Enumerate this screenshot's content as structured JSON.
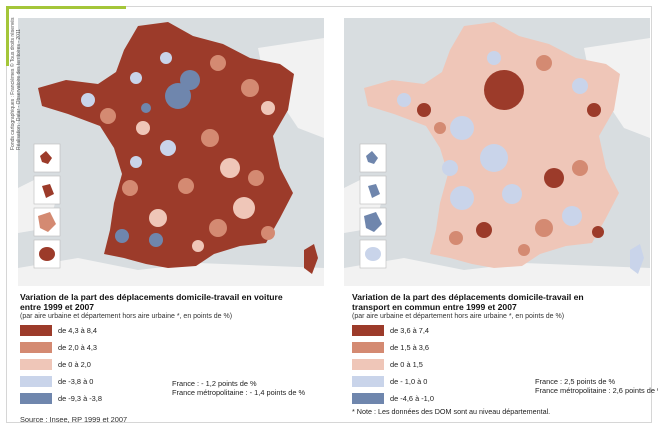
{
  "colors": {
    "c1": "#9c3b2a",
    "c2": "#d48a72",
    "c3": "#efc6b8",
    "c4": "#c9d4ea",
    "c5": "#6f86ad",
    "sea": "#d8dde0",
    "land": "#f2f2f2"
  },
  "credits": {
    "line1": "Fonds cartographiques : Francièmes © Tous droits réservés",
    "line2": "Réalisation : Datar - Observatoire des territoires - 2011"
  },
  "left": {
    "title_line1": "Variation de la part des déplacements domicile-travail en voiture",
    "title_line2": "entre  1999 et 2007",
    "subtitle": "(par aire urbaine et département hors aire urbaine *, en points de %)",
    "legend": [
      {
        "label": "de 4,3 à 8,4",
        "color": "#9c3b2a"
      },
      {
        "label": "de 2,0 à 4,3",
        "color": "#d48a72"
      },
      {
        "label": "de 0 à 2,0",
        "color": "#efc6b8"
      },
      {
        "label": "de -3,8 à 0",
        "color": "#c9d4ea"
      },
      {
        "label": "de -9,3 à -3,8",
        "color": "#6f86ad"
      }
    ],
    "stat_france": "France : - 1,2 points de %",
    "stat_metro": "France métropolitaine : - 1,4 points de %"
  },
  "right": {
    "title_line1": "Variation de la part des déplacements domicile-travail en",
    "title_line2": "transport en commun entre 1999 et 2007",
    "subtitle": "(par aire urbaine et département hors aire urbaine *, en points de %)",
    "legend": [
      {
        "label": "de 3,6 à 7,4",
        "color": "#9c3b2a"
      },
      {
        "label": "de 1,5 à 3,6",
        "color": "#d48a72"
      },
      {
        "label": "de 0 à 1,5",
        "color": "#efc6b8"
      },
      {
        "label": "de - 1,0 à 0",
        "color": "#c9d4ea"
      },
      {
        "label": "de -4,6 à -1,0",
        "color": "#6f86ad"
      }
    ],
    "stat_france": "France : 2,5 points de %",
    "stat_metro": "France métropolitaine : 2,6 points de %",
    "note": "* Note : Les données des DOM sont au niveau départemental."
  },
  "source": "Source : Insee, RP 1999 et 2007"
}
